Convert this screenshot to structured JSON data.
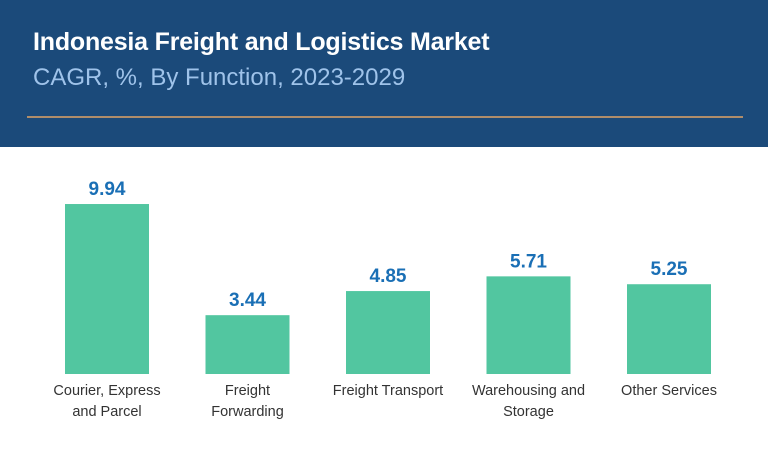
{
  "header": {
    "title": "Indonesia Freight and Logistics Market",
    "subtitle": "CAGR, %, By Function, 2023-2029"
  },
  "colors": {
    "header_bg": "#1b4a7a",
    "subtitle": "#9fc3ea",
    "divider": "#b08d6a",
    "bar": "#52c6a0",
    "value_label": "#1a6fb5",
    "category_label": "#333333"
  },
  "chart_data": {
    "type": "bar",
    "title": "Indonesia Freight and Logistics Market",
    "subtitle": "CAGR, %, By Function, 2023-2029",
    "categories": [
      [
        "Courier, Express",
        "and Parcel"
      ],
      [
        "Freight",
        "Forwarding"
      ],
      [
        "Freight Transport"
      ],
      [
        "Warehousing and",
        "Storage"
      ],
      [
        "Other Services"
      ]
    ],
    "values": [
      9.94,
      3.44,
      4.85,
      5.71,
      5.25
    ],
    "value_labels": [
      "9.94",
      "3.44",
      "4.85",
      "5.71",
      "5.25"
    ],
    "ylim": [
      0,
      10
    ],
    "grid": false,
    "legend": "none",
    "xlabel": "",
    "ylabel": ""
  }
}
